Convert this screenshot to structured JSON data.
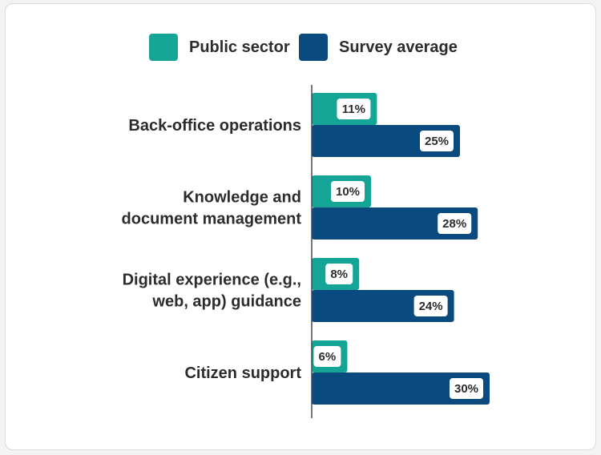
{
  "chart_data": {
    "type": "bar",
    "orientation": "horizontal",
    "title": "",
    "xlabel": "",
    "ylabel": "",
    "legend_position": "top",
    "grid": false,
    "xlim": [
      0,
      30
    ],
    "categories": [
      [
        "Back-office operations"
      ],
      [
        "Knowledge and",
        "document management"
      ],
      [
        "Digital experience (e.g.,",
        "web, app) guidance"
      ],
      [
        "Citizen support"
      ]
    ],
    "series": [
      {
        "name": "Public sector",
        "color": "#14a597",
        "values": [
          11,
          10,
          8,
          6
        ],
        "labels": [
          "11%",
          "10%",
          "8%",
          "6%"
        ]
      },
      {
        "name": "Survey average",
        "color": "#0b4a7e",
        "values": [
          25,
          28,
          24,
          30
        ],
        "labels": [
          "25%",
          "28%",
          "24%",
          "30%"
        ]
      }
    ]
  }
}
